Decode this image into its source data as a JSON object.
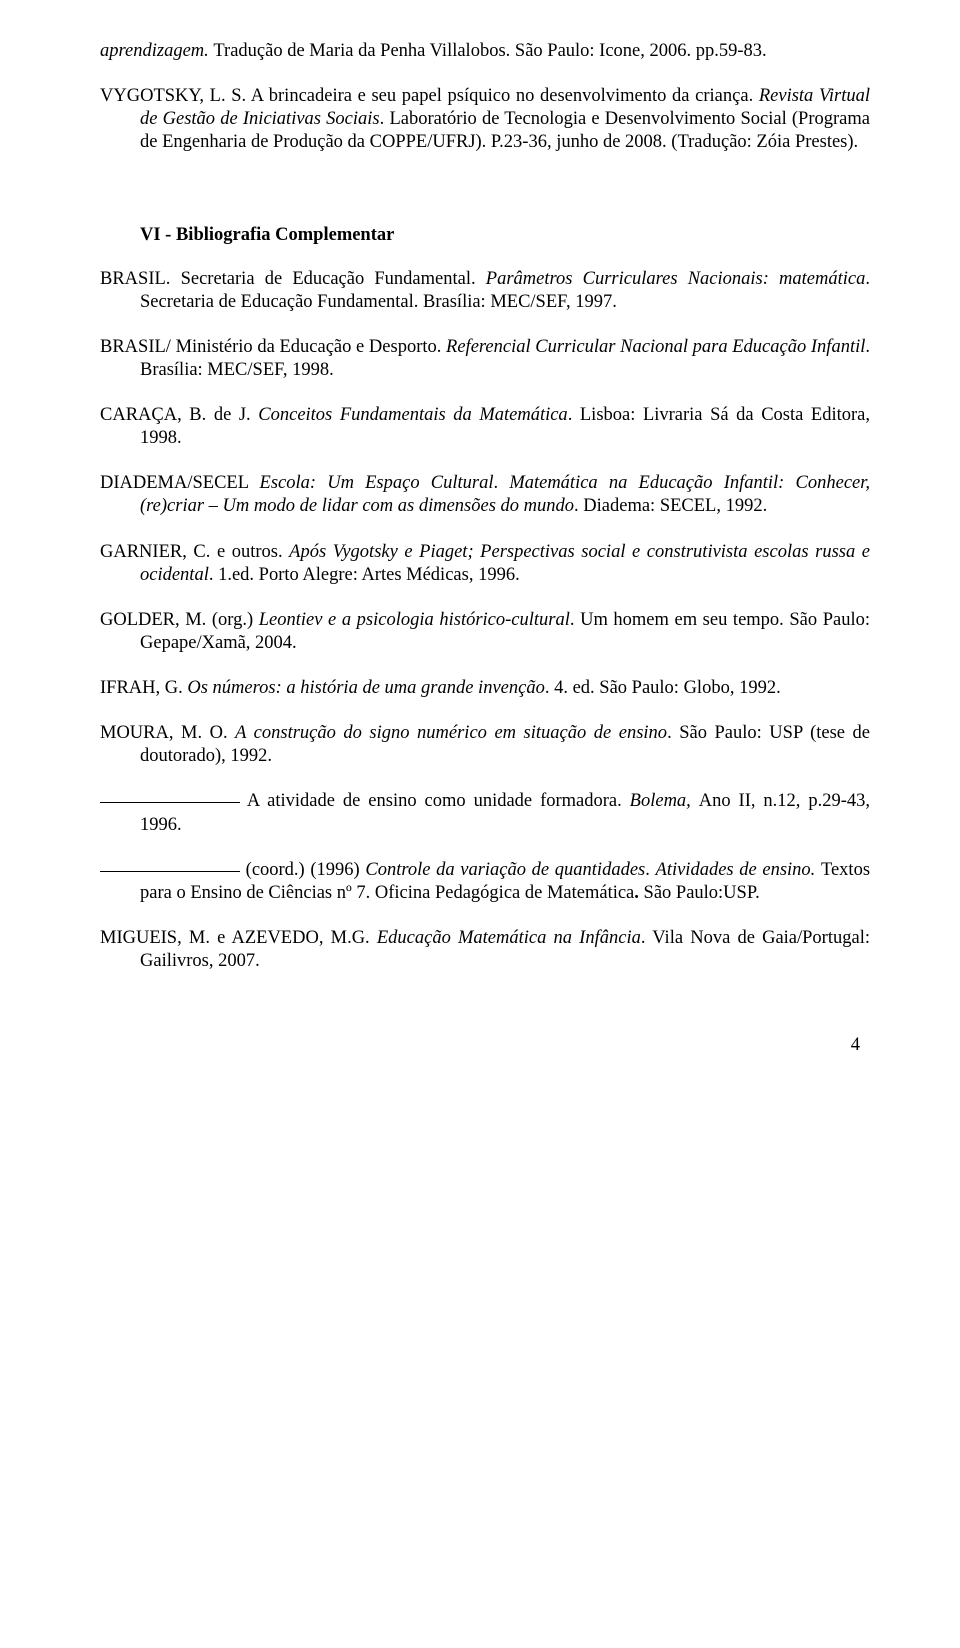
{
  "refs": {
    "r1a": "aprendizagem. ",
    "r1b": "Tradução de Maria da Penha Villalobos. São Paulo: Icone, 2006. pp.59-83.",
    "r2a": "VYGOTSKY, L. S. A brincadeira e seu papel psíquico no desenvolvimento da criança. ",
    "r2b": "Revista Virtual de Gestão de Iniciativas Sociais",
    "r2c": ". Laboratório de Tecnologia e Desenvolvimento Social (Programa de Engenharia de Produção da COPPE/UFRJ). P.23-36, junho de 2008. (Tradução: Zóia Prestes)."
  },
  "section_head": "VI - Bibliografia Complementar",
  "bib": {
    "b1a": "BRASIL. Secretaria de Educação Fundamental. ",
    "b1b": "Parâmetros Curriculares Nacionais: matemática",
    "b1c": ". Secretaria de Educação Fundamental. Brasília: MEC/SEF, 1997.",
    "b2a": "BRASIL/ Ministério da Educação e Desporto. ",
    "b2b": "Referencial Curricular Nacional para Educação Infantil",
    "b2c": ". Brasília: MEC/SEF, 1998.",
    "b3a": "CARAÇA, B. de J. ",
    "b3b": " Conceitos Fundamentais da Matemática",
    "b3c": ". Lisboa: Livraria Sá da Costa Editora, 1998.",
    "b4a": "DIADEMA/SECEL ",
    "b4b": "Escola: Um Espaço Cultural",
    "b4c": ". ",
    "b4d": "Matemática na Educação Infantil: Conhecer, (re)criar – Um modo de lidar com as dimensões do mundo",
    "b4e": ". Diadema: SECEL, 1992.",
    "b5a": "GARNIER, C. e outros. ",
    "b5b": "Após Vygotsky e Piaget; Perspectivas social e construtivista escolas russa e ocidental",
    "b5c": ". 1.ed. Porto Alegre: Artes Médicas, 1996.",
    "b6a": "GOLDER, M. (org.) ",
    "b6b": "Leontiev e a psicologia histórico-cultural",
    "b6c": ". Um homem em seu tempo. São Paulo: Gepape/Xamã, 2004.",
    "b7a": "IFRAH, G. ",
    "b7b": "Os números: a história de uma grande invenção",
    "b7c": ". 4. ed. São Paulo: Globo, 1992.",
    "b8a": "MOURA, M. O. ",
    "b8b": " A construção do signo numérico em situação de ensino",
    "b8c": ". São Paulo: USP (tese de doutorado), 1992.",
    "b9a": " A atividade de ensino como unidade formadora. ",
    "b9b": "Bolema, ",
    "b9c": "Ano II, n.12, p.29-43, 1996.",
    "b10a": " (coord.) (1996) ",
    "b10b": "Controle da variação de quantidades",
    "b10c": ". ",
    "b10d": "Atividades de ensino. ",
    "b10e": " Textos para o Ensino de Ciências nº 7. Oficina Pedagógica de Matemática",
    "b10f": ". ",
    "b10g": "São Paulo:USP.",
    "b11a": "MIGUEIS, M. e AZEVEDO, M.G. ",
    "b11b": "Educação Matemática na Infância",
    "b11c": ". Vila Nova de Gaia/Portugal: Gailivros, 2007."
  },
  "page_number": "4"
}
